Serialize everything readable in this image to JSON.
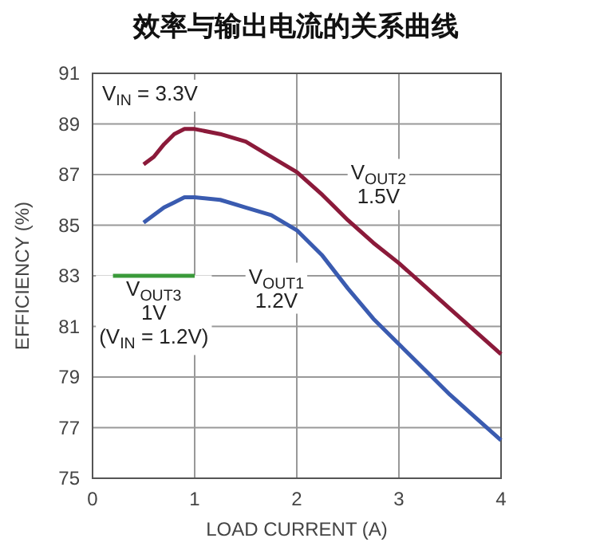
{
  "chart_data": {
    "type": "line",
    "title": "效率与输出电流的关系曲线",
    "xlabel": "LOAD CURRENT (A)",
    "ylabel": "EFFICIENCY (%)",
    "xlim": [
      0,
      4
    ],
    "xticks": [
      0,
      1,
      2,
      3,
      4
    ],
    "ylim": [
      75,
      91
    ],
    "yticks": [
      75,
      77,
      79,
      81,
      83,
      85,
      87,
      89,
      91
    ],
    "grid": true,
    "annotations": [
      "V$_{IN}$ = 3.3V"
    ],
    "series": [
      {
        "name": "V$_{OUT2}$\n1.5V",
        "color": "#8b1a3a",
        "x": [
          0.5,
          0.6,
          0.7,
          0.8,
          0.9,
          1.0,
          1.25,
          1.5,
          1.75,
          2.0,
          2.25,
          2.5,
          2.75,
          3.0,
          3.25,
          3.5,
          3.75,
          4.0
        ],
        "values": [
          87.4,
          87.7,
          88.2,
          88.6,
          88.8,
          88.8,
          88.6,
          88.3,
          87.7,
          87.1,
          86.2,
          85.2,
          84.3,
          83.5,
          82.6,
          81.7,
          80.8,
          79.9
        ]
      },
      {
        "name": "V$_{OUT1}$\n1.2V",
        "color": "#3a5bb0",
        "x": [
          0.5,
          0.6,
          0.7,
          0.8,
          0.9,
          1.0,
          1.25,
          1.5,
          1.75,
          2.0,
          2.25,
          2.5,
          2.75,
          3.0,
          3.25,
          3.5,
          3.75,
          4.0
        ],
        "values": [
          85.1,
          85.4,
          85.7,
          85.9,
          86.1,
          86.1,
          86.0,
          85.7,
          85.4,
          84.8,
          83.8,
          82.5,
          81.3,
          80.3,
          79.3,
          78.3,
          77.4,
          76.5
        ]
      },
      {
        "name": "V$_{OUT3}$\n1V\n(V$_{IN}$ = 1.2V)",
        "color": "#3a9a3a",
        "x": [
          0.2,
          1.0
        ],
        "values": [
          83,
          83
        ]
      }
    ]
  }
}
